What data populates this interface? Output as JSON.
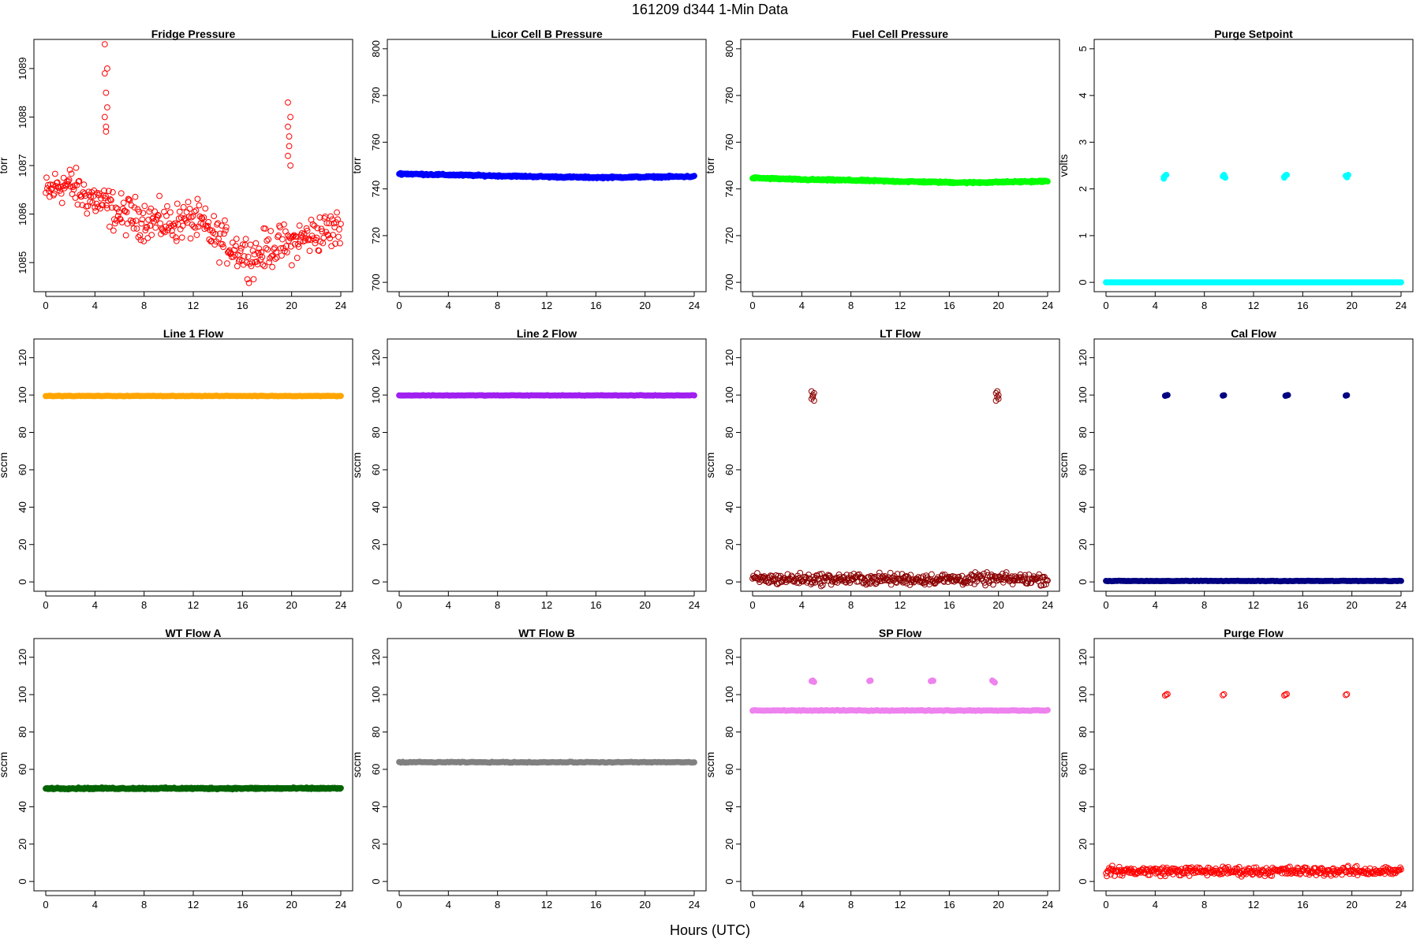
{
  "title": "161209   d344   1-Min Data",
  "xlabel": "Hours (UTC)",
  "x_ticks": [
    0,
    4,
    8,
    12,
    16,
    20,
    24
  ],
  "chart_data": [
    {
      "type": "scatter",
      "title": "Fridge Pressure",
      "ylabel": "torr",
      "color": "#ff0000",
      "xlim": [
        0,
        24
      ],
      "ylim": [
        1084.4,
        1089.6
      ],
      "y_ticks": [
        1085,
        1086,
        1087,
        1088,
        1089
      ],
      "series": [
        {
          "baseline": [
            [
              0,
              1086.4
            ],
            [
              1,
              1086.6
            ],
            [
              2,
              1086.6
            ],
            [
              3,
              1086.4
            ],
            [
              4,
              1086.3
            ],
            [
              6,
              1086.0
            ],
            [
              8,
              1085.9
            ],
            [
              10,
              1085.8
            ],
            [
              12,
              1085.9
            ],
            [
              14,
              1085.5
            ],
            [
              16,
              1085.2
            ],
            [
              17,
              1085.1
            ],
            [
              18,
              1085.3
            ],
            [
              20,
              1085.4
            ],
            [
              22,
              1085.6
            ],
            [
              24,
              1085.7
            ]
          ],
          "noise": 0.6,
          "markers": "hollow",
          "spikes": [
            {
              "x": 4.9,
              "values": [
                1088.0,
                1088.5,
                1089.0,
                1089.5,
                1087.8,
                1088.2,
                1088.9,
                1087.7
              ]
            },
            {
              "x": 19.8,
              "values": [
                1087.2,
                1087.6,
                1088.0,
                1088.3,
                1087.4,
                1087.0,
                1087.8
              ]
            }
          ]
        }
      ]
    },
    {
      "type": "scatter",
      "title": "Licor Cell B Pressure",
      "ylabel": "torr",
      "color": "#0000ff",
      "xlim": [
        0,
        24
      ],
      "ylim": [
        696,
        804
      ],
      "y_ticks": [
        700,
        720,
        740,
        760,
        780,
        800
      ],
      "series": [
        {
          "baseline": [
            [
              0,
              746.5
            ],
            [
              4,
              746.0
            ],
            [
              8,
              745.6
            ],
            [
              12,
              745.2
            ],
            [
              16,
              744.9
            ],
            [
              20,
              745.1
            ],
            [
              24,
              745.3
            ]
          ],
          "noise": 0.5,
          "markers": "filled"
        }
      ]
    },
    {
      "type": "scatter",
      "title": "Fuel Cell Pressure",
      "ylabel": "torr",
      "color": "#00ff00",
      "xlim": [
        0,
        24
      ],
      "ylim": [
        696,
        804
      ],
      "y_ticks": [
        700,
        720,
        740,
        760,
        780,
        800
      ],
      "series": [
        {
          "baseline": [
            [
              0,
              744.7
            ],
            [
              4,
              744.0
            ],
            [
              8,
              743.7
            ],
            [
              12,
              743.2
            ],
            [
              16,
              742.8
            ],
            [
              18,
              742.7
            ],
            [
              20,
              742.9
            ],
            [
              24,
              743.3
            ]
          ],
          "noise": 0.5,
          "markers": "filled"
        }
      ]
    },
    {
      "type": "scatter",
      "title": "Purge Setpoint",
      "ylabel": "volts",
      "color": "#00ffff",
      "xlim": [
        0,
        24
      ],
      "ylim": [
        -0.2,
        5.2
      ],
      "y_ticks": [
        0,
        1,
        2,
        3,
        4,
        5
      ],
      "series": [
        {
          "baseline": [
            [
              0,
              0
            ],
            [
              24,
              0
            ]
          ],
          "noise": 0,
          "markers": "filled",
          "spikes": [
            {
              "x": 4.8,
              "values": [
                2.25,
                2.28,
                2.3,
                2.22
              ]
            },
            {
              "x": 9.6,
              "values": [
                2.27,
                2.3,
                2.24
              ]
            },
            {
              "x": 14.6,
              "values": [
                2.26,
                2.29,
                2.3,
                2.24
              ]
            },
            {
              "x": 19.6,
              "values": [
                2.28,
                2.25,
                2.3
              ]
            }
          ]
        }
      ]
    },
    {
      "type": "scatter",
      "title": "Line 1 Flow",
      "ylabel": "sccm",
      "color": "#ffa500",
      "xlim": [
        0,
        24
      ],
      "ylim": [
        -5,
        130
      ],
      "y_ticks": [
        0,
        20,
        40,
        60,
        80,
        100,
        120
      ],
      "series": [
        {
          "baseline": [
            [
              0,
              99.5
            ],
            [
              24,
              99.5
            ]
          ],
          "noise": 0.2,
          "markers": "filled"
        }
      ]
    },
    {
      "type": "scatter",
      "title": "Line 2 Flow",
      "ylabel": "sccm",
      "color": "#a020f0",
      "xlim": [
        0,
        24
      ],
      "ylim": [
        -5,
        130
      ],
      "y_ticks": [
        0,
        20,
        40,
        60,
        80,
        100,
        120
      ],
      "series": [
        {
          "baseline": [
            [
              0,
              99.8
            ],
            [
              24,
              99.8
            ]
          ],
          "noise": 0.2,
          "markers": "filled"
        }
      ]
    },
    {
      "type": "scatter",
      "title": "LT Flow",
      "ylabel": "sccm",
      "color": "#8b0000",
      "xlim": [
        0,
        24
      ],
      "ylim": [
        -5,
        130
      ],
      "y_ticks": [
        0,
        20,
        40,
        60,
        80,
        100,
        120
      ],
      "series": [
        {
          "baseline": [
            [
              0,
              1.5
            ],
            [
              24,
              1.5
            ]
          ],
          "noise": 4.5,
          "markers": "hollow",
          "spikes": [
            {
              "x": 4.9,
              "values": [
                98,
                100,
                101,
                102,
                99,
                97
              ]
            },
            {
              "x": 19.9,
              "values": [
                97,
                99,
                100,
                101,
                102,
                98
              ]
            }
          ]
        }
      ]
    },
    {
      "type": "scatter",
      "title": "Cal Flow",
      "ylabel": "sccm",
      "color": "#000080",
      "xlim": [
        0,
        24
      ],
      "ylim": [
        -5,
        130
      ],
      "y_ticks": [
        0,
        20,
        40,
        60,
        80,
        100,
        120
      ],
      "series": [
        {
          "baseline": [
            [
              0,
              0.5
            ],
            [
              24,
              0.5
            ]
          ],
          "noise": 0.2,
          "markers": "filled",
          "spikes": [
            {
              "x": 4.9,
              "values": [
                99.6,
                99.8,
                100
              ]
            },
            {
              "x": 9.6,
              "values": [
                99.7,
                99.9
              ]
            },
            {
              "x": 14.7,
              "values": [
                99.6,
                99.8,
                100
              ]
            },
            {
              "x": 19.6,
              "values": [
                99.7,
                99.9
              ]
            }
          ]
        }
      ]
    },
    {
      "type": "scatter",
      "title": "WT Flow A",
      "ylabel": "sccm",
      "color": "#006400",
      "xlim": [
        0,
        24
      ],
      "ylim": [
        -5,
        130
      ],
      "y_ticks": [
        0,
        20,
        40,
        60,
        80,
        100,
        120
      ],
      "series": [
        {
          "baseline": [
            [
              0,
              49.8
            ],
            [
              24,
              49.8
            ]
          ],
          "noise": 0.6,
          "markers": "filled"
        }
      ]
    },
    {
      "type": "scatter",
      "title": "WT Flow B",
      "ylabel": "sccm",
      "color": "#808080",
      "xlim": [
        0,
        24
      ],
      "ylim": [
        -5,
        130
      ],
      "y_ticks": [
        0,
        20,
        40,
        60,
        80,
        100,
        120
      ],
      "series": [
        {
          "baseline": [
            [
              0,
              63.8
            ],
            [
              24,
              63.8
            ]
          ],
          "noise": 0.3,
          "markers": "filled"
        }
      ]
    },
    {
      "type": "scatter",
      "title": "SP Flow",
      "ylabel": "sccm",
      "color": "#ee82ee",
      "xlim": [
        0,
        24
      ],
      "ylim": [
        -5,
        130
      ],
      "y_ticks": [
        0,
        20,
        40,
        60,
        80,
        100,
        120
      ],
      "series": [
        {
          "baseline": [
            [
              0,
              91.5
            ],
            [
              24,
              91.5
            ]
          ],
          "noise": 0.3,
          "markers": "filled",
          "spikes": [
            {
              "x": 4.9,
              "values": [
                107.2,
                107.5,
                106.8
              ]
            },
            {
              "x": 9.6,
              "values": [
                107.3,
                107.5
              ]
            },
            {
              "x": 14.6,
              "values": [
                107.2,
                107.5,
                107.4
              ]
            },
            {
              "x": 19.6,
              "values": [
                107.5,
                107.0,
                106.5
              ]
            }
          ]
        }
      ]
    },
    {
      "type": "scatter",
      "title": "Purge Flow",
      "ylabel": "sccm",
      "color": "#ff0000",
      "xlim": [
        0,
        24
      ],
      "ylim": [
        -5,
        130
      ],
      "y_ticks": [
        0,
        20,
        40,
        60,
        80,
        100,
        120
      ],
      "series": [
        {
          "baseline": [
            [
              0,
              5.5
            ],
            [
              24,
              5.5
            ]
          ],
          "noise": 3.5,
          "markers": "hollow",
          "spikes": [
            {
              "x": 4.9,
              "values": [
                99.5,
                100,
                100.3
              ]
            },
            {
              "x": 9.6,
              "values": [
                99.7,
                100.2
              ]
            },
            {
              "x": 14.6,
              "values": [
                99.6,
                100,
                100.3
              ]
            },
            {
              "x": 19.6,
              "values": [
                99.8,
                100.2
              ]
            }
          ]
        }
      ]
    }
  ]
}
